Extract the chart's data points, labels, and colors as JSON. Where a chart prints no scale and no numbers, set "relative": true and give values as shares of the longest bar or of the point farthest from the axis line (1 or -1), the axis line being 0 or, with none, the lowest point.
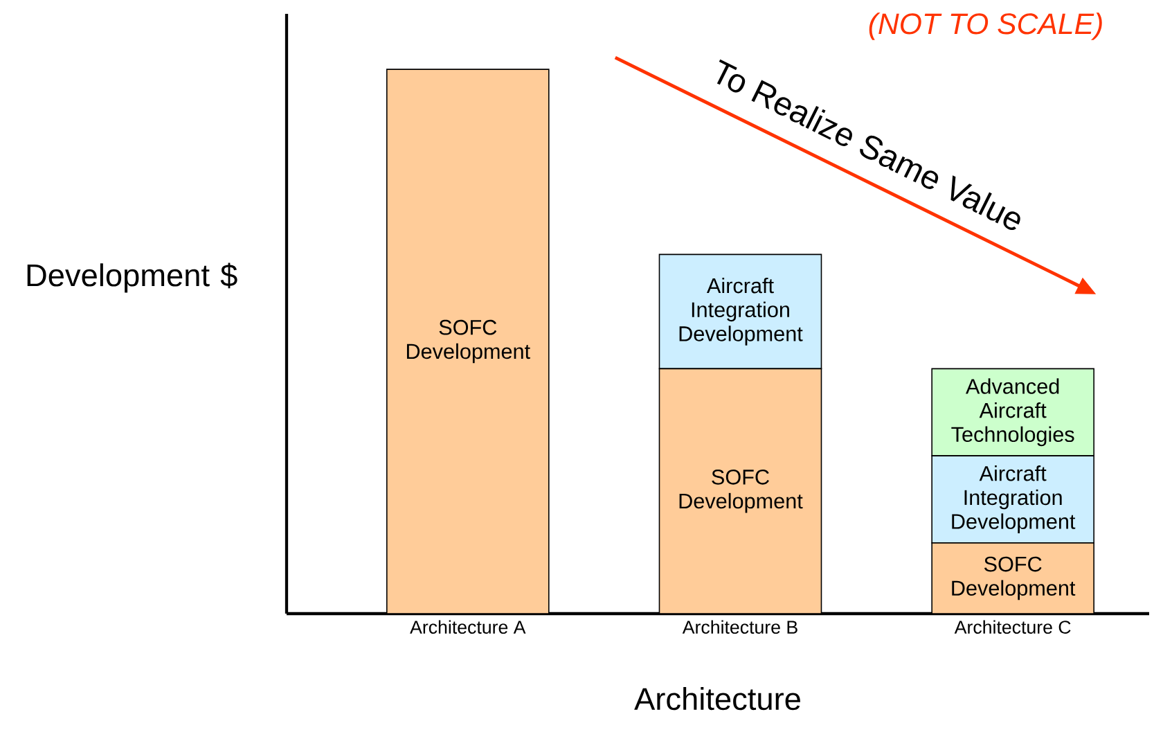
{
  "chart_data": {
    "type": "bar",
    "stacked": true,
    "relative": true,
    "xlabel": "Architecture",
    "ylabel": "Development $",
    "categories": [
      "Architecture A",
      "Architecture B",
      "Architecture C"
    ],
    "series": [
      {
        "name": "SOFC Development",
        "color": "#ffcc99",
        "values": [
          1,
          0.45,
          0.13
        ]
      },
      {
        "name": "Aircraft Integration Development",
        "color": "#cceeff",
        "values": [
          null,
          0.21,
          0.16
        ]
      },
      {
        "name": "Advanced Aircraft Technologies",
        "color": "#ccffcc",
        "values": [
          null,
          null,
          0.16
        ]
      }
    ],
    "annotations": [
      "(NOT TO SCALE)",
      "To Realize Same Value"
    ],
    "grid": false
  }
}
